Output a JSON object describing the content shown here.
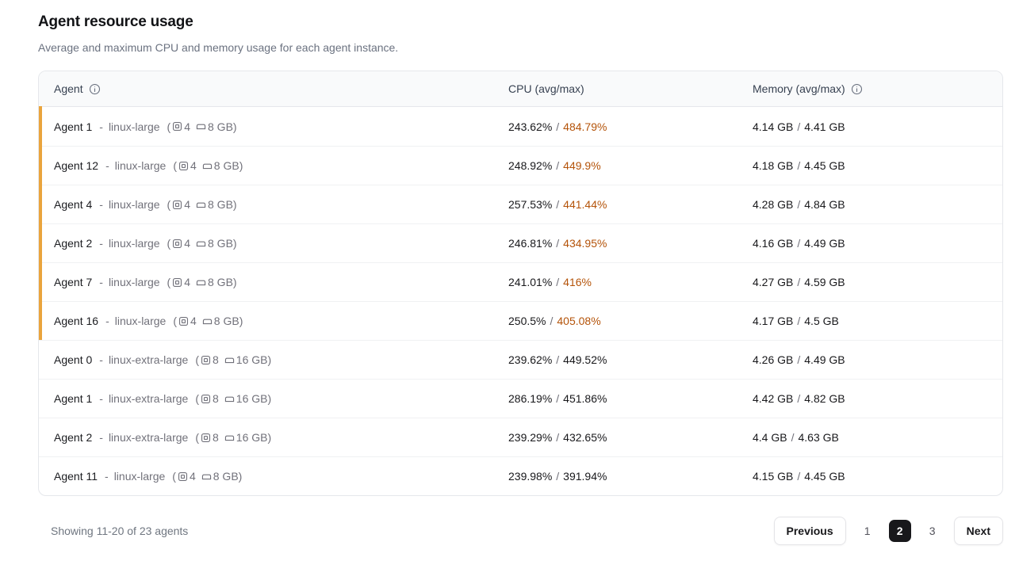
{
  "page": {
    "title": "Agent resource usage",
    "subtitle": "Average and maximum CPU and memory usage for each agent instance."
  },
  "table": {
    "columns": [
      {
        "label": "Agent",
        "info_icon": true
      },
      {
        "label": "CPU (avg/max)",
        "info_icon": false
      },
      {
        "label": "Memory (avg/max)",
        "info_icon": true
      }
    ],
    "row_format": {
      "dash": "-",
      "open_paren": "(",
      "close_paren": ")",
      "value_separator": "/"
    },
    "rows": [
      {
        "agent": "Agent 1",
        "instance": "linux-large",
        "cpu_count": "4",
        "ram": "8 GB",
        "cpu_avg": "243.62%",
        "cpu_max": "484.79%",
        "mem_avg": "4.14 GB",
        "mem_max": "4.41 GB",
        "highlight": true,
        "cpu_max_hot": true
      },
      {
        "agent": "Agent 12",
        "instance": "linux-large",
        "cpu_count": "4",
        "ram": "8 GB",
        "cpu_avg": "248.92%",
        "cpu_max": "449.9%",
        "mem_avg": "4.18 GB",
        "mem_max": "4.45 GB",
        "highlight": true,
        "cpu_max_hot": true
      },
      {
        "agent": "Agent 4",
        "instance": "linux-large",
        "cpu_count": "4",
        "ram": "8 GB",
        "cpu_avg": "257.53%",
        "cpu_max": "441.44%",
        "mem_avg": "4.28 GB",
        "mem_max": "4.84 GB",
        "highlight": true,
        "cpu_max_hot": true
      },
      {
        "agent": "Agent 2",
        "instance": "linux-large",
        "cpu_count": "4",
        "ram": "8 GB",
        "cpu_avg": "246.81%",
        "cpu_max": "434.95%",
        "mem_avg": "4.16 GB",
        "mem_max": "4.49 GB",
        "highlight": true,
        "cpu_max_hot": true
      },
      {
        "agent": "Agent 7",
        "instance": "linux-large",
        "cpu_count": "4",
        "ram": "8 GB",
        "cpu_avg": "241.01%",
        "cpu_max": "416%",
        "mem_avg": "4.27 GB",
        "mem_max": "4.59 GB",
        "highlight": true,
        "cpu_max_hot": true
      },
      {
        "agent": "Agent 16",
        "instance": "linux-large",
        "cpu_count": "4",
        "ram": "8 GB",
        "cpu_avg": "250.5%",
        "cpu_max": "405.08%",
        "mem_avg": "4.17 GB",
        "mem_max": "4.5 GB",
        "highlight": true,
        "cpu_max_hot": true
      },
      {
        "agent": "Agent 0",
        "instance": "linux-extra-large",
        "cpu_count": "8",
        "ram": "16 GB",
        "cpu_avg": "239.62%",
        "cpu_max": "449.52%",
        "mem_avg": "4.26 GB",
        "mem_max": "4.49 GB",
        "highlight": false,
        "cpu_max_hot": false
      },
      {
        "agent": "Agent 1",
        "instance": "linux-extra-large",
        "cpu_count": "8",
        "ram": "16 GB",
        "cpu_avg": "286.19%",
        "cpu_max": "451.86%",
        "mem_avg": "4.42 GB",
        "mem_max": "4.82 GB",
        "highlight": false,
        "cpu_max_hot": false
      },
      {
        "agent": "Agent 2",
        "instance": "linux-extra-large",
        "cpu_count": "8",
        "ram": "16 GB",
        "cpu_avg": "239.29%",
        "cpu_max": "432.65%",
        "mem_avg": "4.4 GB",
        "mem_max": "4.63 GB",
        "highlight": false,
        "cpu_max_hot": false
      },
      {
        "agent": "Agent 11",
        "instance": "linux-large",
        "cpu_count": "4",
        "ram": "8 GB",
        "cpu_avg": "239.98%",
        "cpu_max": "391.94%",
        "mem_avg": "4.15 GB",
        "mem_max": "4.45 GB",
        "highlight": false,
        "cpu_max_hot": false
      }
    ]
  },
  "footer": {
    "showing": "Showing 11-20 of 23 agents",
    "pagination": {
      "previous_label": "Previous",
      "pages": [
        "1",
        "2",
        "3"
      ],
      "active": "2",
      "next_label": "Next"
    }
  },
  "colors": {
    "highlight_bar": "#eaa43c",
    "hot_value": "#b45309",
    "active_page_bg": "#18181b"
  }
}
